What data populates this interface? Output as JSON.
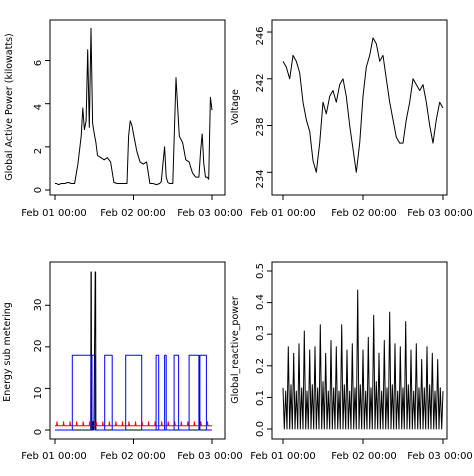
{
  "chart_data": [
    {
      "type": "line",
      "title": "",
      "xlabel": "",
      "ylabel": "Global Active Power (kilowatts)",
      "x_tick_labels": [
        "Feb 01 00:00",
        "Feb 02 00:00",
        "Feb 03 00:00"
      ],
      "x_range": [
        "Feb 01 00:00",
        "Feb 03 00:00"
      ],
      "y_tick_labels": [
        "0",
        "2",
        "4",
        "6"
      ],
      "ylim": [
        0,
        7.6
      ],
      "grid": false,
      "series": [
        {
          "color": "#000000",
          "x_hours": [
            0,
            0.5,
            1,
            2,
            3,
            4,
            5,
            6,
            7,
            8,
            8.5,
            9,
            9.5,
            10,
            10.5,
            11,
            11.5,
            12,
            12.5,
            13,
            14,
            15,
            16,
            17,
            18,
            19,
            20,
            21,
            22,
            22.5,
            23,
            23.5,
            24,
            25,
            26,
            27,
            28,
            29,
            30,
            31,
            32,
            32.5,
            33,
            33.5,
            34,
            34.5,
            35,
            36,
            37,
            38,
            39,
            40,
            41,
            42,
            43,
            44,
            44.5,
            45,
            45.5,
            46,
            46.5,
            47,
            47.5,
            48
          ],
          "values": [
            0.3,
            0.3,
            0.25,
            0.3,
            0.3,
            0.35,
            0.3,
            0.3,
            1.2,
            2.5,
            3.8,
            2.8,
            3.2,
            6.5,
            2.9,
            7.5,
            3.1,
            2.6,
            2.2,
            1.6,
            1.5,
            1.4,
            1.5,
            1.3,
            0.35,
            0.3,
            0.3,
            0.3,
            0.3,
            2.5,
            3.2,
            3.0,
            2.6,
            1.8,
            1.3,
            1.2,
            1.3,
            0.3,
            0.3,
            0.25,
            0.3,
            0.4,
            1.2,
            2.0,
            0.6,
            0.35,
            0.3,
            0.3,
            5.2,
            2.5,
            2.2,
            1.4,
            1.3,
            0.8,
            0.6,
            0.6,
            1.8,
            2.6,
            1.2,
            0.6,
            0.6,
            0.5,
            4.3,
            3.7
          ]
        }
      ]
    },
    {
      "type": "line",
      "title": "",
      "xlabel": "",
      "ylabel": "Voltage",
      "x_tick_labels": [
        "Feb 01 00:00",
        "Feb 02 00:00",
        "Feb 03 00:00"
      ],
      "x_range": [
        "Feb 01 00:00",
        "Feb 03 00:00"
      ],
      "y_tick_labels": [
        "234",
        "238",
        "242",
        "246"
      ],
      "ylim": [
        233,
        246.6
      ],
      "grid": false,
      "series": [
        {
          "color": "#000000",
          "x_hours": [
            0,
            1,
            2,
            3,
            4,
            5,
            6,
            7,
            8,
            9,
            10,
            11,
            12,
            13,
            14,
            15,
            16,
            17,
            18,
            19,
            20,
            21,
            22,
            23,
            24,
            25,
            26,
            27,
            28,
            29,
            30,
            31,
            32,
            33,
            34,
            35,
            36,
            37,
            38,
            39,
            40,
            41,
            42,
            43,
            44,
            45,
            46,
            47,
            48
          ],
          "values": [
            243.5,
            243.0,
            242.0,
            244.0,
            243.5,
            242.5,
            240.0,
            238.5,
            237.5,
            235.0,
            234.0,
            236.5,
            240.0,
            239.0,
            240.5,
            241.0,
            240.0,
            241.5,
            242.0,
            240.5,
            238.0,
            236.0,
            234.0,
            236.5,
            240.5,
            243.0,
            244.0,
            245.5,
            245.0,
            243.5,
            244.0,
            242.0,
            240.0,
            238.5,
            237.0,
            236.5,
            236.5,
            238.5,
            240.0,
            242.0,
            241.5,
            241.0,
            241.5,
            240.0,
            238.0,
            236.5,
            238.5,
            240.0,
            239.5
          ]
        }
      ]
    },
    {
      "type": "line",
      "title": "",
      "xlabel": "",
      "ylabel": "Energy sub metering",
      "x_tick_labels": [
        "Feb 01 00:00",
        "Feb 02 00:00",
        "Feb 03 00:00"
      ],
      "x_range": [
        "Feb 01 00:00",
        "Feb 03 00:00"
      ],
      "y_tick_labels": [
        "0",
        "10",
        "20",
        "30"
      ],
      "ylim": [
        0,
        38
      ],
      "grid": false,
      "series": [
        {
          "color": "#000000",
          "x_hours": [
            0,
            10.9,
            11.0,
            11.1,
            11.2,
            11.5,
            11.6,
            11.7,
            11.8,
            11.9,
            12.3,
            12.4,
            12.5,
            12.6,
            48
          ],
          "values": [
            0,
            0,
            38,
            38,
            0,
            0,
            2,
            2,
            0,
            0,
            38,
            38,
            0,
            0,
            0
          ]
        },
        {
          "color": "#ff0000",
          "x_hours": [
            0,
            0.5,
            0.6,
            0.8,
            2.5,
            2.6,
            2.8,
            4.5,
            4.6,
            4.8,
            6.5,
            6.6,
            6.8,
            8.5,
            8.6,
            8.8,
            10.5,
            10.6,
            10.8,
            12.5,
            12.6,
            12.8,
            14.5,
            14.6,
            14.8,
            16.5,
            16.6,
            16.8,
            18.5,
            18.6,
            18.8,
            20.5,
            20.6,
            20.8,
            22.5,
            22.6,
            22.8,
            24.5,
            24.6,
            24.8,
            26.5,
            26.6,
            26.8,
            28.5,
            28.6,
            28.8,
            30.5,
            30.6,
            30.8,
            32.5,
            32.6,
            32.8,
            34.5,
            34.6,
            34.8,
            36.5,
            36.6,
            36.8,
            38.5,
            38.6,
            38.8,
            40.5,
            40.6,
            40.8,
            42.5,
            42.6,
            42.8,
            44.5,
            44.6,
            44.8,
            46.5,
            46.6,
            46.8,
            48
          ],
          "values": [
            1,
            1,
            2,
            1,
            1,
            2,
            1,
            1,
            2,
            1,
            1,
            2,
            1,
            1,
            2,
            1,
            1,
            2,
            1,
            1,
            2,
            1,
            1,
            2,
            1,
            1,
            2,
            1,
            1,
            2,
            1,
            1,
            2,
            1,
            1,
            2,
            1,
            1,
            2,
            1,
            1,
            2,
            1,
            1,
            2,
            1,
            1,
            2,
            1,
            1,
            2,
            1,
            1,
            2,
            1,
            1,
            2,
            1,
            1,
            2,
            1,
            1,
            2,
            1,
            1,
            2,
            1,
            1,
            2,
            1,
            1,
            2,
            1,
            1
          ]
        },
        {
          "color": "#0000ff",
          "x_hours": [
            0,
            5.3,
            5.3,
            11.0,
            11.0,
            11.3,
            11.3,
            12.3,
            12.3,
            15.2,
            15.2,
            17.5,
            17.5,
            21.6,
            21.6,
            26.5,
            26.5,
            30.9,
            30.9,
            31.7,
            31.7,
            33.5,
            33.5,
            34.0,
            34.0,
            36.4,
            36.4,
            37.8,
            37.8,
            41.0,
            41.0,
            44.0,
            44.0,
            44.3,
            44.3,
            46.3,
            46.3,
            48
          ],
          "values": [
            0,
            0,
            18,
            18,
            0,
            0,
            18,
            18,
            0,
            0,
            18,
            18,
            0,
            0,
            18,
            18,
            0,
            0,
            18,
            18,
            0,
            0,
            18,
            18,
            0,
            0,
            18,
            18,
            0,
            0,
            18,
            18,
            0,
            0,
            18,
            18,
            0,
            0
          ]
        }
      ]
    },
    {
      "type": "line",
      "title": "",
      "xlabel": "",
      "ylabel": "Global_reactive_power",
      "x_tick_labels": [
        "Feb 01 00:00",
        "Feb 02 00:00",
        "Feb 03 00:00"
      ],
      "x_range": [
        "Feb 01 00:00",
        "Feb 03 00:00"
      ],
      "y_tick_labels": [
        "0.0",
        "0.1",
        "0.2",
        "0.3",
        "0.4",
        "0.5"
      ],
      "ylim": [
        0,
        0.5
      ],
      "grid": false,
      "series": [
        {
          "color": "#000000",
          "x_hours": [
            0,
            0.4,
            0.8,
            1.2,
            1.6,
            2.0,
            2.4,
            2.8,
            3.2,
            3.6,
            4.0,
            4.4,
            4.8,
            5.2,
            5.6,
            6.0,
            6.4,
            6.8,
            7.2,
            7.6,
            8.0,
            8.4,
            8.8,
            9.2,
            9.6,
            10.0,
            10.4,
            10.8,
            11.2,
            11.6,
            12.0,
            12.4,
            12.8,
            13.2,
            13.6,
            14.0,
            14.4,
            14.8,
            15.2,
            15.6,
            16.0,
            16.4,
            16.8,
            17.2,
            17.6,
            18.0,
            18.4,
            18.8,
            19.2,
            19.6,
            20.0,
            20.4,
            20.8,
            21.2,
            21.6,
            22.0,
            22.4,
            22.8,
            23.2,
            23.6,
            24.0,
            24.4,
            24.8,
            25.2,
            25.6,
            26.0,
            26.4,
            26.8,
            27.2,
            27.6,
            28.0,
            28.4,
            28.8,
            29.2,
            29.6,
            30.0,
            30.4,
            30.8,
            31.2,
            31.6,
            32.0,
            32.4,
            32.8,
            33.2,
            33.6,
            34.0,
            34.4,
            34.8,
            35.2,
            35.6,
            36.0,
            36.4,
            36.8,
            37.2,
            37.6,
            38.0,
            38.4,
            38.8,
            39.2,
            39.6,
            40.0,
            40.4,
            40.8,
            41.2,
            41.6,
            42.0,
            42.4,
            42.8,
            43.2,
            43.6,
            44.0,
            44.4,
            44.8,
            45.2,
            45.6,
            46.0,
            46.4,
            46.8,
            47.2,
            47.6,
            48.0
          ],
          "values": [
            0.13,
            0.0,
            0.12,
            0.0,
            0.26,
            0.0,
            0.14,
            0.0,
            0.24,
            0.0,
            0.12,
            0.0,
            0.27,
            0.0,
            0.13,
            0.0,
            0.31,
            0.0,
            0.12,
            0.0,
            0.25,
            0.0,
            0.14,
            0.0,
            0.26,
            0.0,
            0.13,
            0.0,
            0.33,
            0.0,
            0.15,
            0.0,
            0.24,
            0.0,
            0.12,
            0.0,
            0.28,
            0.0,
            0.13,
            0.0,
            0.26,
            0.0,
            0.12,
            0.0,
            0.33,
            0.0,
            0.14,
            0.0,
            0.25,
            0.0,
            0.12,
            0.0,
            0.27,
            0.0,
            0.13,
            0.0,
            0.44,
            0.0,
            0.14,
            0.0,
            0.25,
            0.0,
            0.12,
            0.0,
            0.29,
            0.0,
            0.13,
            0.0,
            0.36,
            0.0,
            0.15,
            0.0,
            0.24,
            0.0,
            0.12,
            0.0,
            0.28,
            0.0,
            0.13,
            0.0,
            0.37,
            0.0,
            0.14,
            0.0,
            0.27,
            0.0,
            0.12,
            0.0,
            0.26,
            0.0,
            0.13,
            0.0,
            0.34,
            0.0,
            0.14,
            0.0,
            0.25,
            0.0,
            0.12,
            0.0,
            0.27,
            0.0,
            0.13,
            0.0,
            0.22,
            0.0,
            0.13,
            0.0,
            0.26,
            0.0,
            0.14,
            0.0,
            0.24,
            0.0,
            0.12,
            0.0,
            0.22,
            0.0,
            0.13,
            0.0,
            0.12
          ]
        }
      ]
    }
  ]
}
